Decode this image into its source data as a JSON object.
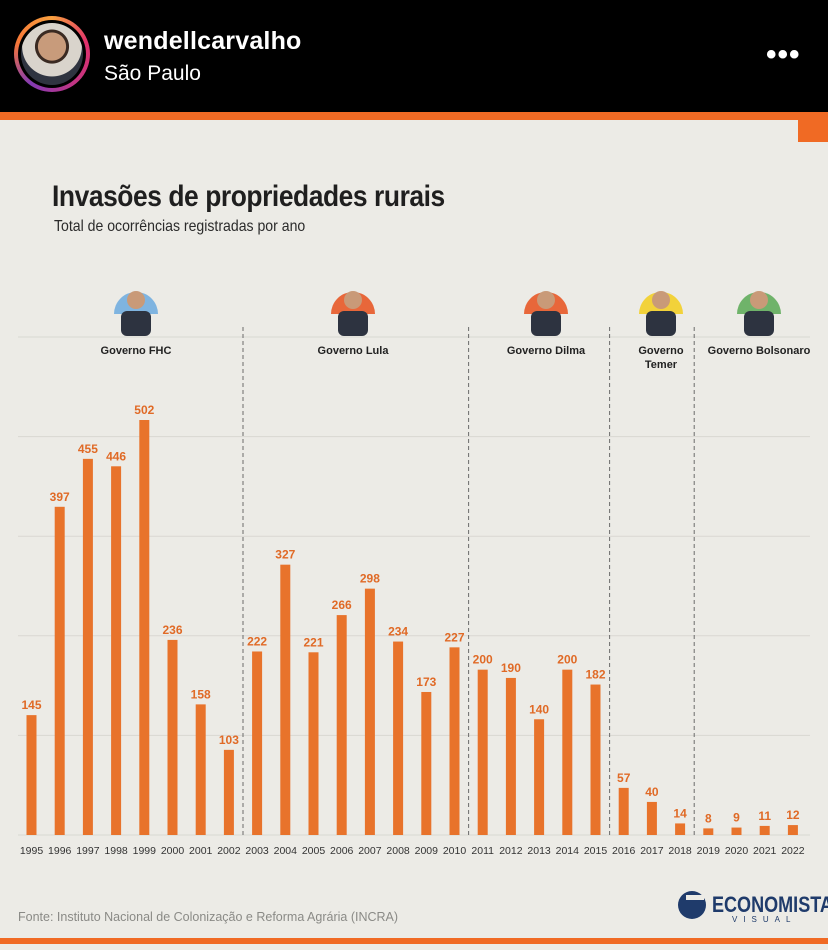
{
  "post": {
    "username": "wendellcarvalho",
    "location": "São Paulo",
    "more_icon": "more-dots-icon"
  },
  "colors": {
    "bar": "#e8732b",
    "accent": "#f06a24",
    "background": "#ecebe6",
    "text": "#1f1f1f"
  },
  "chart_data": {
    "type": "bar",
    "title": "Invasões de propriedades rurais",
    "subtitle": "Total de ocorrências registradas por ano",
    "categories": [
      "1995",
      "1996",
      "1997",
      "1998",
      "1999",
      "2000",
      "2001",
      "2002",
      "2003",
      "2004",
      "2005",
      "2006",
      "2007",
      "2008",
      "2009",
      "2010",
      "2011",
      "2012",
      "2013",
      "2014",
      "2015",
      "2016",
      "2017",
      "2018",
      "2019",
      "2020",
      "2021",
      "2022"
    ],
    "values": [
      145,
      397,
      455,
      446,
      502,
      236,
      158,
      103,
      222,
      327,
      221,
      266,
      298,
      234,
      173,
      227,
      200,
      190,
      140,
      200,
      182,
      57,
      40,
      14,
      8,
      9,
      11,
      12
    ],
    "ylim": [
      0,
      502
    ],
    "grid": true,
    "governments": [
      {
        "name": "Governo FHC",
        "first_index": 0,
        "last_index": 7
      },
      {
        "name": "Governo Lula",
        "first_index": 8,
        "last_index": 15
      },
      {
        "name": "Governo Dilma",
        "first_index": 16,
        "last_index": 20
      },
      {
        "name": "Governo Temer",
        "first_index": 21,
        "last_index": 23
      },
      {
        "name": "Governo Bolsonaro",
        "first_index": 24,
        "last_index": 27
      }
    ],
    "source": "Fonte: Instituto Nacional de Colonização e Reforma Agrária (INCRA)"
  },
  "branding": {
    "logo_text": "ECONOMISTA",
    "logo_sub": "VISUAL"
  }
}
